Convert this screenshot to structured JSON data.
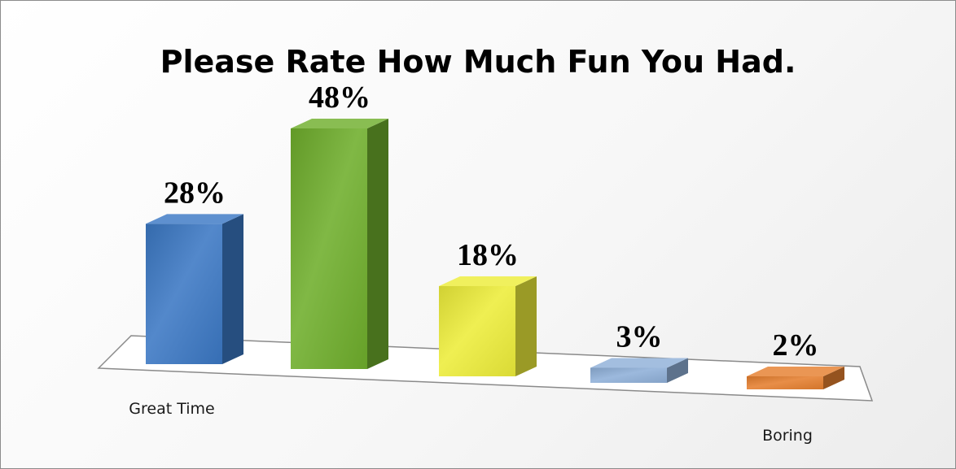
{
  "chart_data": {
    "type": "bar",
    "title": "Please Rate How Much Fun You Had.",
    "categories": [
      "Great Time",
      "",
      "",
      "",
      "Boring"
    ],
    "values": [
      28,
      48,
      18,
      3,
      2
    ],
    "value_labels": [
      "28%",
      "48%",
      "18%",
      "3%",
      "2%"
    ],
    "unit": "%",
    "colors": [
      "#3b78c4",
      "#6fae2c",
      "#eded3a",
      "#8fb0d8",
      "#e57f2f"
    ],
    "style": "3d-column",
    "grid": false,
    "legend": "none",
    "ylim": [
      0,
      48
    ]
  }
}
